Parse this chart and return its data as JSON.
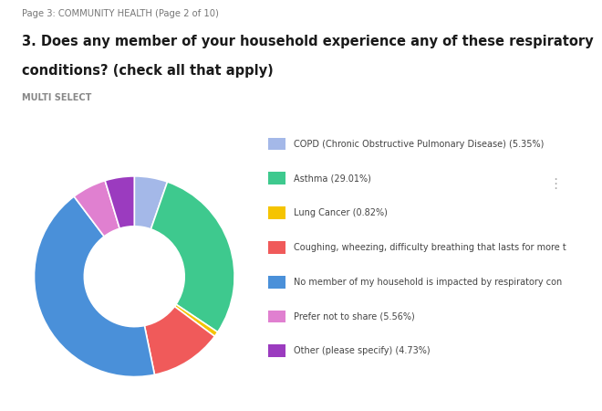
{
  "page_label": "Page 3: COMMUNITY HEALTH (Page 2 of 10)",
  "title_line1": "3. Does any member of your household experience any of these respiratory",
  "title_line2": "conditions? (check all that apply)",
  "subtitle": "MULTI SELECT",
  "slices": [
    {
      "label": "COPD (Chronic Obstructive Pulmonary Disease) (5.35%)",
      "value": 5.35,
      "color": "#a4b8e8"
    },
    {
      "label": "Asthma (29.01%)",
      "value": 29.01,
      "color": "#3ec98e"
    },
    {
      "label": "Lung Cancer (0.82%)",
      "value": 0.82,
      "color": "#f5c400"
    },
    {
      "label": "Coughing, wheezing, difficulty breathing that lasts for more t",
      "value": 11.58,
      "color": "#f05a5a"
    },
    {
      "label": "No member of my household is impacted by respiratory con",
      "value": 42.95,
      "color": "#4a90d9"
    },
    {
      "label": "Prefer not to share (5.56%)",
      "value": 5.56,
      "color": "#e080d0"
    },
    {
      "label": "Other (please specify) (4.73%)",
      "value": 4.73,
      "color": "#9b3bbf"
    }
  ],
  "background_color": "#ffffff",
  "page_label_color": "#777777",
  "title_color": "#1a1a1a",
  "subtitle_color": "#888888",
  "legend_text_color": "#444444",
  "dots_color": "#aaaaaa"
}
